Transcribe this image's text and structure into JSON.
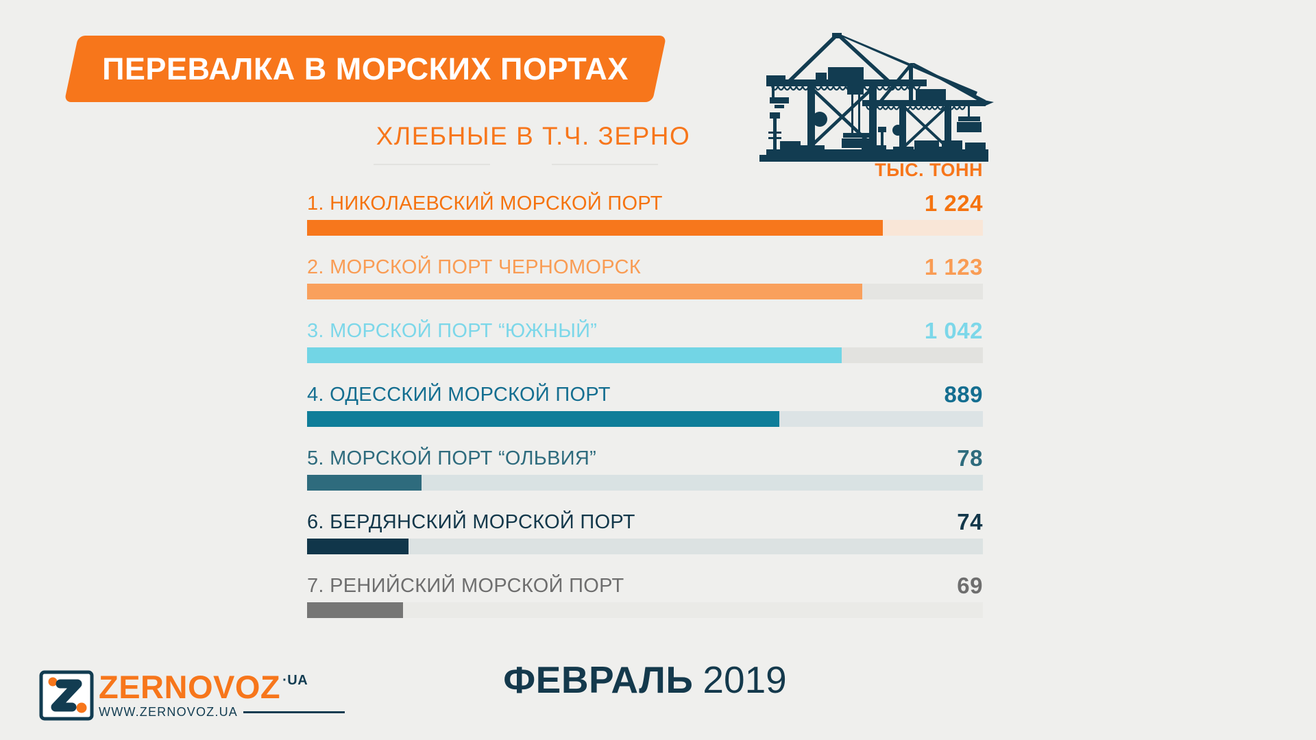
{
  "page": {
    "background": "#EFEFED"
  },
  "header": {
    "title": "ПЕРЕВАЛКА В МОРСКИХ ПОРТАХ",
    "subtitle": "ХЛЕБНЫЕ В Т.Ч. ЗЕРНО",
    "unit": "ТЫС. ТОНН",
    "banner_color": "#F7761B",
    "title_color": "#FFFFFF",
    "subtitle_color": "#F7761B",
    "unit_color": "#F7761B",
    "illustration": "port-container-cranes-silhouette",
    "illustration_color": "#123C51"
  },
  "chart_data": {
    "type": "bar",
    "orientation": "horizontal",
    "title": "ПЕРЕВАЛКА В МОРСКИХ ПОРТАХ",
    "subtitle": "ХЛЕБНЫЕ В Т.Ч. ЗЕРНО",
    "unit": "ТЫС. ТОНН",
    "period": "ФЕВРАЛЬ 2019",
    "value_axis_visible": false,
    "grid": false,
    "legend": null,
    "categories": [
      "1. НИКОЛАЕВСКИЙ МОРСКОЙ ПОРТ",
      "2. МОРСКОЙ ПОРТ ЧЕРНОМОРСК",
      "3. МОРСКОЙ ПОРТ “ЮЖНЫЙ”",
      "4. ОДЕССКИЙ МОРСКОЙ ПОРТ",
      "5. МОРСКОЙ ПОРТ “ОЛЬВИЯ”",
      "6. БЕРДЯНСКИЙ МОРСКОЙ ПОРТ",
      "7. РЕНИЙСКИЙ МОРСКОЙ ПОРТ"
    ],
    "values": [
      1224,
      1123,
      1042,
      889,
      78,
      74,
      69
    ],
    "rows": [
      {
        "label": "1. НИКОЛАЕВСКИЙ МОРСКОЙ ПОРТ",
        "value": 1224,
        "value_label": "1 224",
        "bar_color": "#F7771C",
        "track_color": "#F9E6D7",
        "text_color": "#F5730F",
        "bar_percent": 85.2
      },
      {
        "label": "2. МОРСКОЙ ПОРТ ЧЕРНОМОРСК",
        "value": 1123,
        "value_label": "1 123",
        "bar_color": "#F9A05C",
        "track_color": "#E5E5E2",
        "text_color": "#F99C54",
        "bar_percent": 82.1
      },
      {
        "label": "3. МОРСКОЙ ПОРТ “ЮЖНЫЙ”",
        "value": 1042,
        "value_label": "1 042",
        "bar_color": "#72D5E5",
        "track_color": "#E2E2DF",
        "text_color": "#7CD7E9",
        "bar_percent": 79.1
      },
      {
        "label": "4. ОДЕССКИЙ МОРСКОЙ ПОРТ",
        "value": 889,
        "value_label": "889",
        "bar_color": "#0F7D99",
        "track_color": "#DCE3E5",
        "text_color": "#146E90",
        "bar_percent": 69.9
      },
      {
        "label": "5. МОРСКОЙ ПОРТ “ОЛЬВИЯ”",
        "value": 78,
        "value_label": "78",
        "bar_color": "#2E6B7D",
        "track_color": "#D9E2E3",
        "text_color": "#2E6B7D",
        "bar_percent": 16.9
      },
      {
        "label": "6. БЕРДЯНСКИЙ МОРСКОЙ ПОРТ",
        "value": 74,
        "value_label": "74",
        "bar_color": "#10364A",
        "track_color": "#DCE2E2",
        "text_color": "#12374A",
        "bar_percent": 15.0
      },
      {
        "label": "7. РЕНИЙСКИЙ МОРСКОЙ ПОРТ",
        "value": 69,
        "value_label": "69",
        "bar_color": "#767675",
        "track_color": "#EAEAE7",
        "text_color": "#6E6E6E",
        "bar_percent": 14.2
      }
    ]
  },
  "footer": {
    "month": "ФЕВРАЛЬ",
    "year": "2019",
    "month_color": "#14394C",
    "brand": "ZERNOVOZ",
    "brand_suffix": "·UA",
    "website": "WWW.ZERNOVOZ.UA",
    "brand_color": "#F7761B",
    "brand_dark_color": "#123C51"
  }
}
